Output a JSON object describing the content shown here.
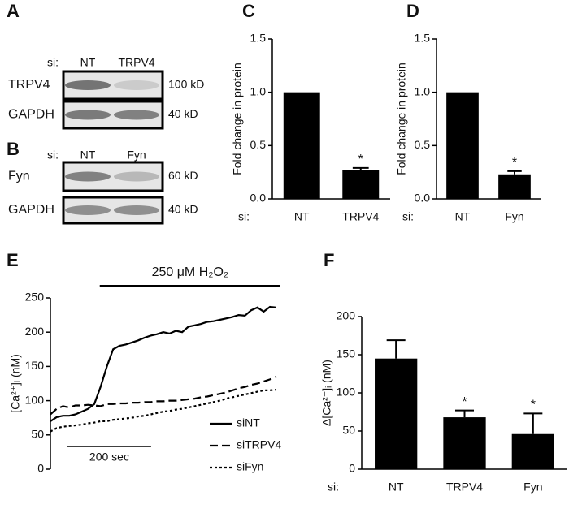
{
  "blots": [
    {
      "label": "A",
      "si": "si:",
      "lanes": [
        "NT",
        "TRPV4"
      ],
      "rows": [
        {
          "name": "TRPV4",
          "size": "100 kD"
        },
        {
          "name": "GAPDH",
          "size": "40 kD"
        }
      ]
    },
    {
      "label": "B",
      "si": "si:",
      "lanes": [
        "NT",
        "Fyn"
      ],
      "rows": [
        {
          "name": "Fyn",
          "size": "60 kD"
        },
        {
          "name": "GAPDH",
          "size": "40 kD"
        }
      ]
    }
  ],
  "chart_data": [
    {
      "type": "bar",
      "label": "C",
      "ylabel": "Fold change in protein",
      "x_prefix": "si:",
      "categories": [
        "NT",
        "TRPV4"
      ],
      "values": [
        1.0,
        0.27
      ],
      "errors": [
        0,
        0.02
      ],
      "annotations": [
        null,
        "*"
      ],
      "color": "#000000",
      "ylim": [
        0,
        1.5
      ],
      "yticks": [
        {
          "value": 0,
          "label": "0.0"
        },
        0.5,
        {
          "value": 1,
          "label": "1.0"
        },
        1.5
      ]
    },
    {
      "type": "bar",
      "label": "D",
      "ylabel": "Fold change in protein",
      "x_prefix": "si:",
      "categories": [
        "NT",
        "Fyn"
      ],
      "values": [
        1.0,
        0.23
      ],
      "errors": [
        0,
        0.03
      ],
      "annotations": [
        null,
        "*"
      ],
      "color": "#000000",
      "ylim": [
        0,
        1.5
      ],
      "yticks": [
        {
          "value": 0,
          "label": "0.0"
        },
        0.5,
        {
          "value": 1,
          "label": "1.0"
        },
        1.5
      ]
    },
    {
      "type": "line",
      "label": "E",
      "ylabel": "[Ca²⁺]ᵢ (nM)",
      "treatment": {
        "label": "250 μM H₂O₂",
        "start": 118
      },
      "scalebar": {
        "value": 200,
        "label": "200 sec"
      },
      "x": [
        0,
        15,
        30,
        45,
        60,
        75,
        90,
        105,
        120,
        135,
        150,
        165,
        180,
        195,
        210,
        225,
        240,
        255,
        270,
        285,
        300,
        315,
        330,
        345,
        360,
        375,
        390,
        405,
        420,
        435,
        450,
        465,
        480,
        495,
        510,
        525,
        540
      ],
      "xlim": [
        0,
        550
      ],
      "ylim": [
        0,
        250
      ],
      "yticks": [
        0,
        50,
        100,
        150,
        200,
        250
      ],
      "series": [
        {
          "name": "siNT",
          "color": "#000000",
          "style": "solid",
          "values": [
            70,
            76,
            78,
            78,
            80,
            84,
            88,
            95,
            120,
            150,
            175,
            180,
            182,
            185,
            188,
            192,
            195,
            197,
            200,
            198,
            202,
            200,
            208,
            210,
            212,
            215,
            216,
            218,
            220,
            222,
            225,
            224,
            232,
            236,
            230,
            237,
            236
          ]
        },
        {
          "name": "siTRPV4",
          "color": "#000000",
          "style": "dashed",
          "values": [
            80,
            88,
            92,
            90,
            93,
            93,
            94,
            93,
            92,
            95,
            95,
            96,
            96,
            97,
            97,
            98,
            98,
            99,
            99,
            100,
            100,
            101,
            102,
            103,
            105,
            106,
            108,
            110,
            112,
            115,
            118,
            120,
            123,
            125,
            128,
            131,
            135
          ]
        },
        {
          "name": "siFyn",
          "color": "#000000",
          "style": "dotted",
          "values": [
            55,
            60,
            62,
            63,
            64,
            65,
            67,
            68,
            70,
            70,
            72,
            73,
            74,
            75,
            77,
            78,
            80,
            82,
            84,
            85,
            87,
            88,
            90,
            92,
            94,
            96,
            98,
            100,
            103,
            105,
            107,
            109,
            111,
            113,
            115,
            115,
            116
          ]
        }
      ]
    },
    {
      "type": "bar",
      "label": "F",
      "ylabel": "Δ[Ca²⁺]ᵢ (nM)",
      "x_prefix": "si:",
      "categories": [
        "NT",
        "TRPV4",
        "Fyn"
      ],
      "values": [
        145,
        68,
        46
      ],
      "errors": [
        24,
        9,
        27
      ],
      "annotations": [
        null,
        "*",
        "*"
      ],
      "color": "#000000",
      "ylim": [
        0,
        200
      ],
      "yticks": [
        0,
        50,
        100,
        150,
        200
      ]
    }
  ]
}
